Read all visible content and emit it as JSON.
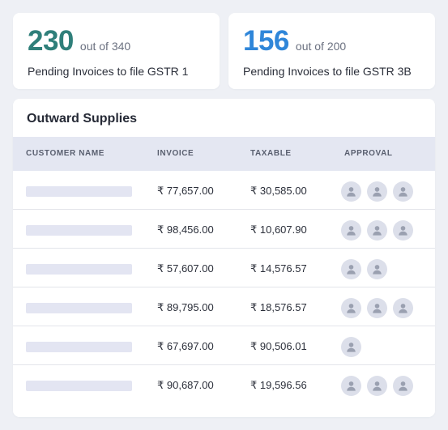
{
  "stats": [
    {
      "value": "230",
      "out_of": "out of 340",
      "label": "Pending Invoices to file GSTR 1",
      "color": "#2f7f7a"
    },
    {
      "value": "156",
      "out_of": "out of 200",
      "label": "Pending Invoices to file GSTR 3B",
      "color": "#2f86d9"
    }
  ],
  "table": {
    "title": "Outward Supplies",
    "columns": {
      "customer": "CUSTOMER NAME",
      "invoice": "INVOICE",
      "taxable": "TAXABLE",
      "approval": "APPROVAL"
    },
    "rows": [
      {
        "invoice": "₹ 77,657.00",
        "taxable": "₹ 30,585.00",
        "approvals": 3
      },
      {
        "invoice": "₹ 98,456.00",
        "taxable": "₹ 10,607.90",
        "approvals": 3
      },
      {
        "invoice": "₹ 57,607.00",
        "taxable": "₹ 14,576.57",
        "approvals": 2
      },
      {
        "invoice": "₹ 89,795.00",
        "taxable": "₹ 18,576.57",
        "approvals": 3
      },
      {
        "invoice": "₹ 67,697.00",
        "taxable": "₹ 90,506.01",
        "approvals": 1
      },
      {
        "invoice": "₹ 90,687.00",
        "taxable": "₹ 19,596.56",
        "approvals": 3
      }
    ],
    "avatar_icon": "user-avatar-icon"
  }
}
